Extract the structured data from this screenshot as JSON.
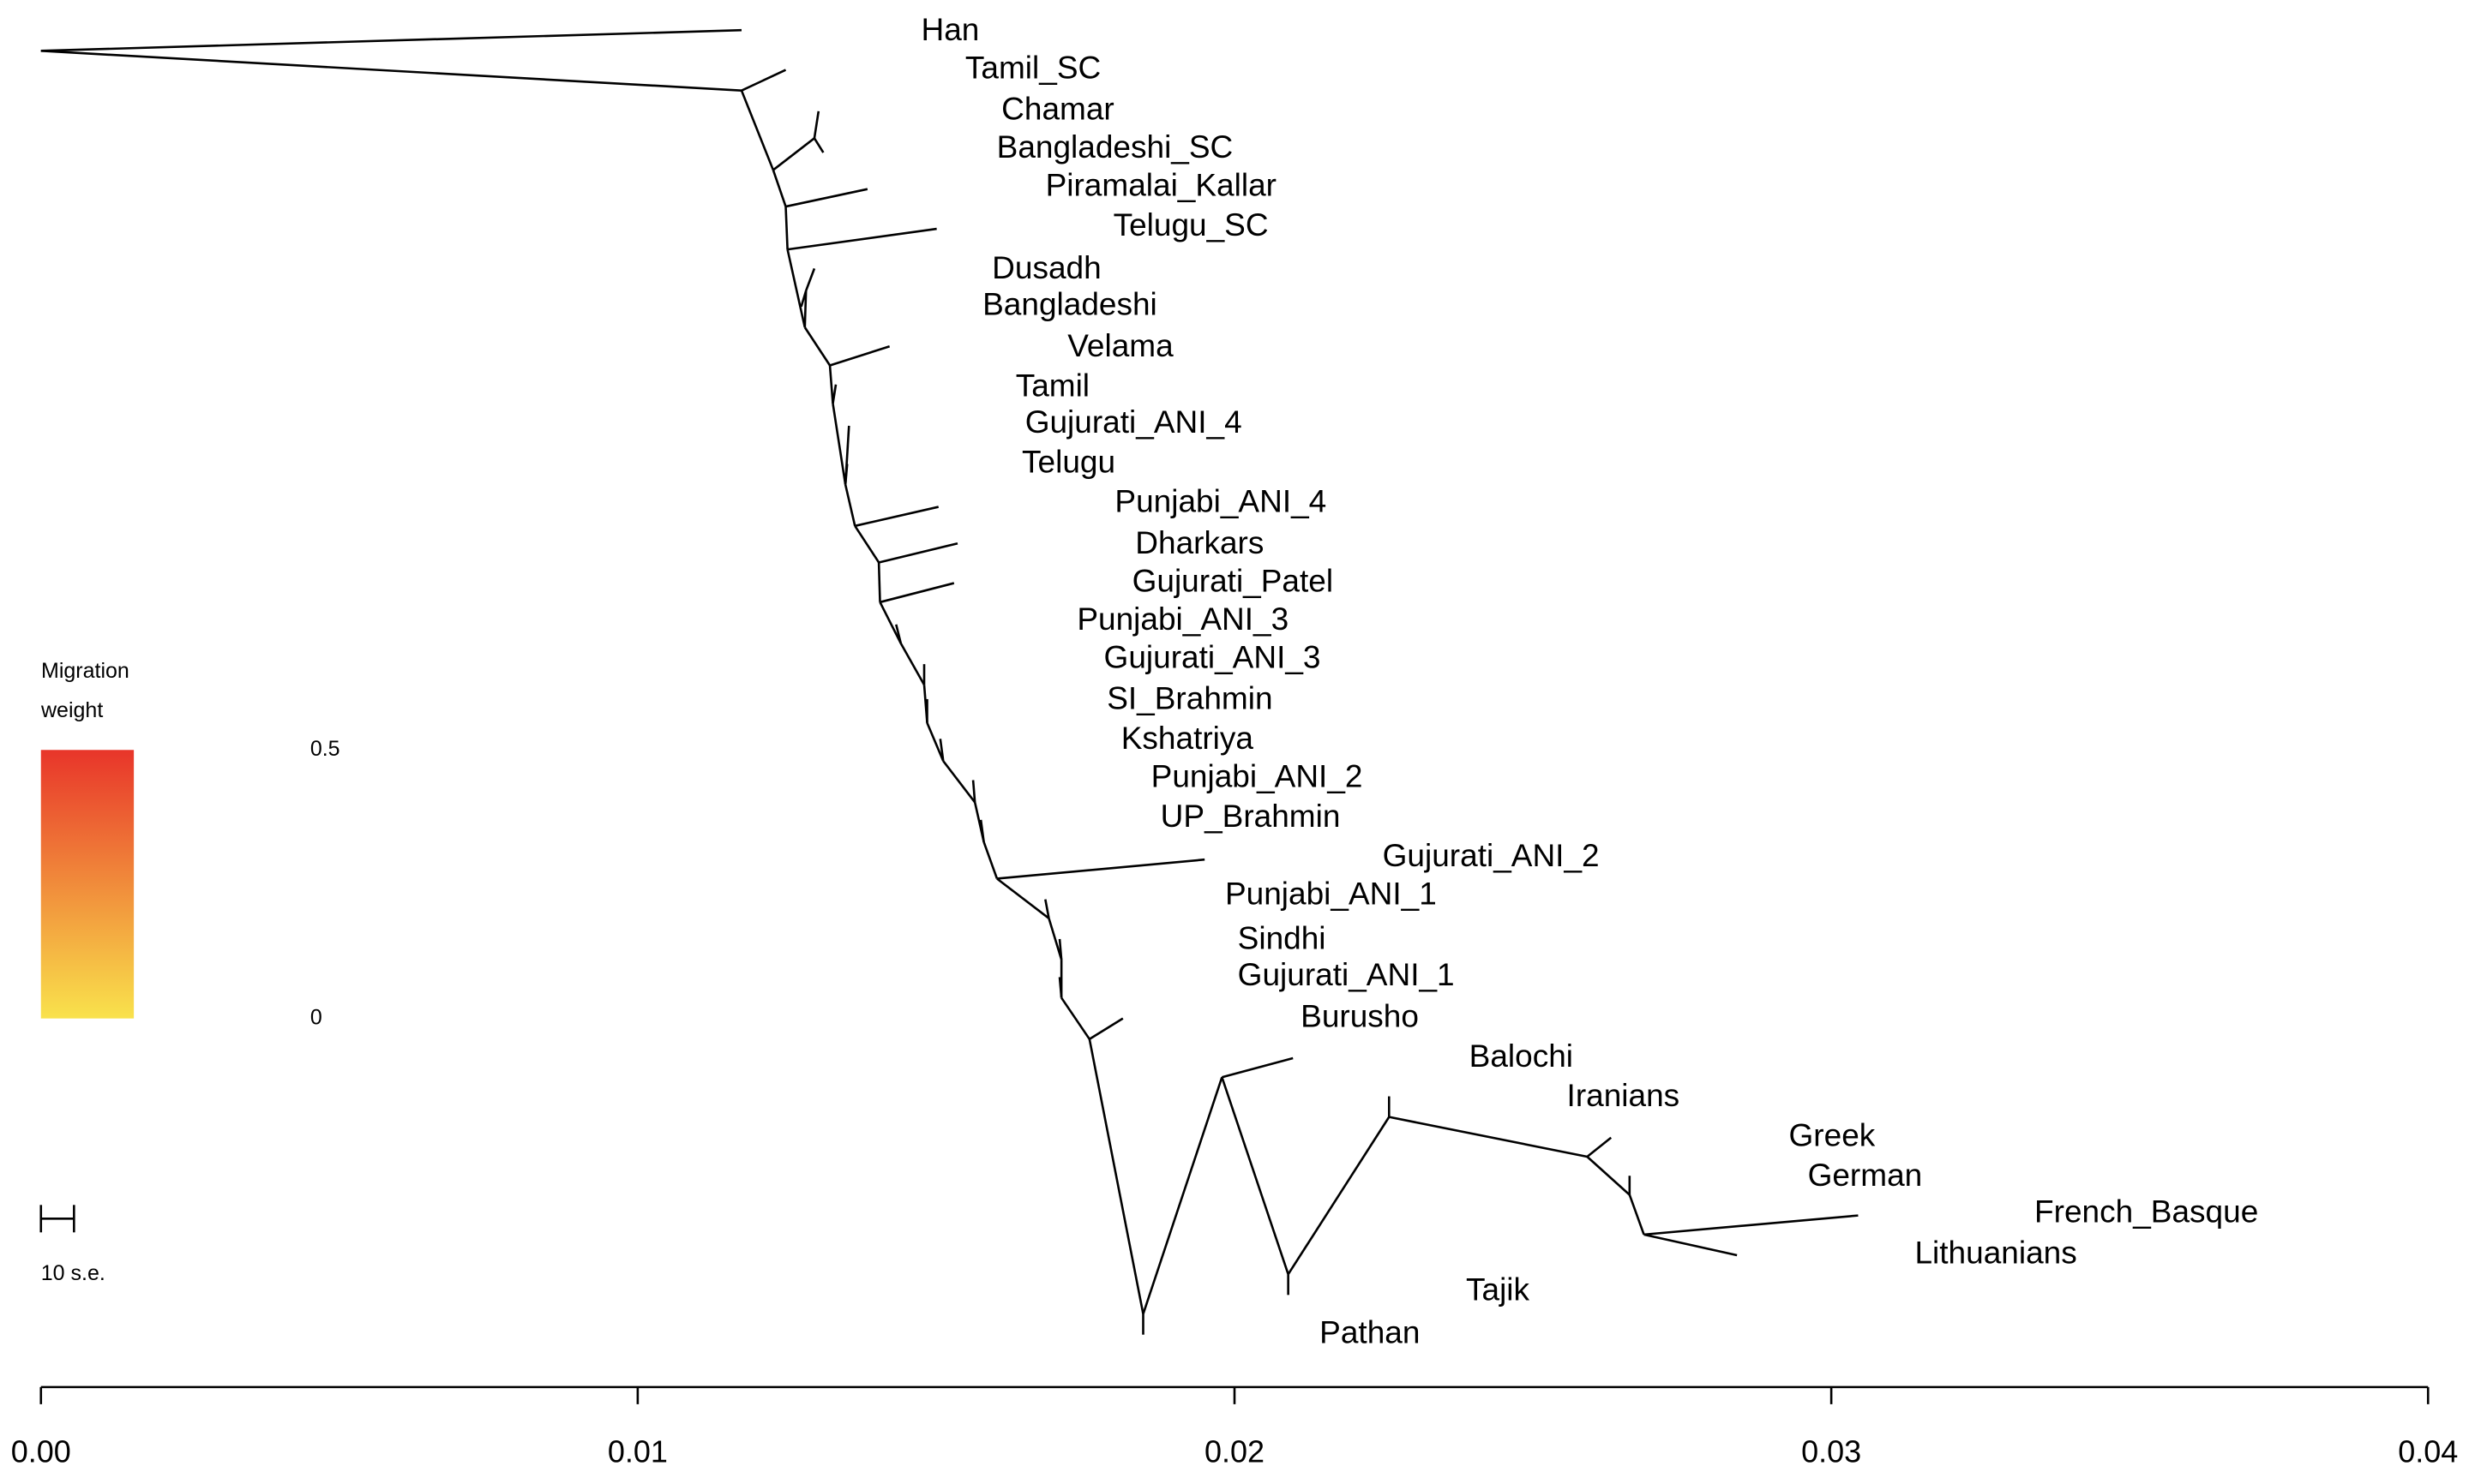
{
  "chart_data": {
    "type": "tree",
    "xlim": [
      0,
      0.04
    ],
    "xticks": [
      {
        "value": 0,
        "label": "0.00"
      },
      {
        "value": 0.01,
        "label": "0.01"
      },
      {
        "value": 0.02,
        "label": "0.02"
      },
      {
        "value": 0.03,
        "label": "0.03"
      },
      {
        "value": 0.04,
        "label": "0.04"
      }
    ],
    "color": "#000000",
    "legend": {
      "title": "Migration weight",
      "lim": [
        0,
        0.5
      ],
      "ticks": [
        0.5,
        0
      ],
      "colors": [
        "#f9e24c",
        "#e8352a"
      ]
    },
    "scale_bar": "10 s.e.",
    "nodes": [
      {
        "x": 0
      },
      {
        "name": "Han",
        "x": 0.01174,
        "parent": 0
      },
      {
        "x": 0.01174,
        "parent": 0
      },
      {
        "name": "Tamil_SC",
        "x": 0.01248,
        "parent": 2
      },
      {
        "x": 0.01227,
        "parent": 2
      },
      {
        "x": 0.01296,
        "parent": 4
      },
      {
        "name": "Chamar",
        "x": 0.01303,
        "parent": 5
      },
      {
        "name": "Bangladeshi_SC",
        "x": 0.01311,
        "parent": 5
      },
      {
        "x": 0.01248,
        "parent": 4
      },
      {
        "name": "Piramalai_Kallar",
        "x": 0.01385,
        "parent": 8
      },
      {
        "x": 0.01251,
        "parent": 8
      },
      {
        "name": "Telugu_SC",
        "x": 0.01501,
        "parent": 10
      },
      {
        "x": 0.0128,
        "parent": 10
      },
      {
        "x": 0.01282,
        "parent": 12
      },
      {
        "name": "Dusadh",
        "x": 0.01296,
        "parent": 13
      },
      {
        "name": "Bangladeshi",
        "x": 0.01274,
        "parent": 13
      },
      {
        "x": 0.01322,
        "parent": 12
      },
      {
        "name": "Velama",
        "x": 0.01422,
        "parent": 16
      },
      {
        "x": 0.01327,
        "parent": 16
      },
      {
        "name": "Tamil",
        "x": 0.01332,
        "parent": 18
      },
      {
        "x": 0.01348,
        "parent": 18
      },
      {
        "name": "Gujurati_ANI_4",
        "x": 0.01354,
        "parent": 20
      },
      {
        "name": "Telugu",
        "x": 0.01351,
        "parent": 20
      },
      {
        "x": 0.01364,
        "parent": 20
      },
      {
        "name": "Punjabi_ANI_4",
        "x": 0.01504,
        "parent": 23
      },
      {
        "x": 0.01404,
        "parent": 23
      },
      {
        "name": "Dharkars",
        "x": 0.01536,
        "parent": 25
      },
      {
        "x": 0.01406,
        "parent": 25
      },
      {
        "name": "Gujurati_Patel",
        "x": 0.0153,
        "parent": 27
      },
      {
        "x": 0.01441,
        "parent": 27
      },
      {
        "name": "Punjabi_ANI_3",
        "x": 0.01433,
        "parent": 29
      },
      {
        "x": 0.0148,
        "parent": 29
      },
      {
        "name": "Gujurati_ANI_3",
        "x": 0.0148,
        "parent": 31
      },
      {
        "x": 0.01485,
        "parent": 31
      },
      {
        "name": "SI_Brahmin",
        "x": 0.01485,
        "parent": 33
      },
      {
        "x": 0.01512,
        "parent": 33
      },
      {
        "name": "Kshatriya",
        "x": 0.01507,
        "parent": 35
      },
      {
        "x": 0.01565,
        "parent": 35
      },
      {
        "name": "Punjabi_ANI_2",
        "x": 0.01562,
        "parent": 37
      },
      {
        "x": 0.0158,
        "parent": 37
      },
      {
        "name": "UP_Brahmin",
        "x": 0.01575,
        "parent": 39
      },
      {
        "x": 0.01602,
        "parent": 39
      },
      {
        "name": "Gujurati_ANI_2",
        "x": 0.0195,
        "parent": 41
      },
      {
        "x": 0.01689,
        "parent": 41
      },
      {
        "name": "Punjabi_ANI_1",
        "x": 0.01683,
        "parent": 43
      },
      {
        "x": 0.0171,
        "parent": 43
      },
      {
        "name": "Sindhi",
        "x": 0.01707,
        "parent": 45
      },
      {
        "x": 0.0171,
        "parent": 45
      },
      {
        "name": "Gujurati_ANI_1",
        "x": 0.01707,
        "parent": 47
      },
      {
        "x": 0.01757,
        "parent": 47
      },
      {
        "name": "Burusho",
        "x": 0.01813,
        "parent": 49
      },
      {
        "x": 0.01847,
        "parent": 49
      },
      {
        "name": "Pathan",
        "x": 0.01847,
        "parent": 51
      },
      {
        "x": 0.01979,
        "parent": 51
      },
      {
        "name": "Balochi",
        "x": 0.02098,
        "parent": 53
      },
      {
        "x": 0.0209,
        "parent": 53
      },
      {
        "name": "Tajik",
        "x": 0.0209,
        "parent": 55
      },
      {
        "x": 0.02259,
        "parent": 55
      },
      {
        "name": "Iranians",
        "x": 0.02259,
        "parent": 57
      },
      {
        "x": 0.02591,
        "parent": 57
      },
      {
        "name": "Greek",
        "x": 0.02631,
        "parent": 59
      },
      {
        "x": 0.02662,
        "parent": 59
      },
      {
        "name": "German",
        "x": 0.02662,
        "parent": 61
      },
      {
        "x": 0.02686,
        "parent": 61
      },
      {
        "name": "French_Basque",
        "x": 0.03045,
        "parent": 63
      },
      {
        "name": "Lithuanians",
        "x": 0.02842,
        "parent": 63
      }
    ]
  }
}
